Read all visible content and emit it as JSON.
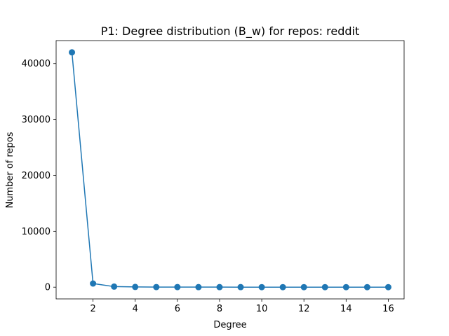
{
  "chart_data": {
    "type": "line",
    "title": "P1: Degree distribution (B_w) for repos: reddit",
    "xlabel": "Degree",
    "ylabel": "Number of repos",
    "x": [
      1,
      2,
      3,
      4,
      5,
      6,
      7,
      8,
      9,
      10,
      11,
      12,
      13,
      14,
      15,
      16
    ],
    "series": [
      {
        "values": [
          42000,
          650,
          100,
          40,
          20,
          15,
          10,
          6,
          5,
          4,
          3,
          3,
          2,
          2,
          1,
          1
        ],
        "color": "#1f77b4"
      }
    ],
    "xlim": [
      0.25,
      16.75
    ],
    "ylim": [
      -2100,
      44100
    ],
    "xticks": [
      2,
      4,
      6,
      8,
      10,
      12,
      14,
      16
    ],
    "xtick_labels": [
      "2",
      "4",
      "6",
      "8",
      "10",
      "12",
      "14",
      "16"
    ],
    "yticks": [
      0,
      10000,
      20000,
      30000,
      40000
    ],
    "ytick_labels": [
      "0",
      "10000",
      "20000",
      "30000",
      "40000"
    ],
    "marker": "circle",
    "grid": false
  }
}
